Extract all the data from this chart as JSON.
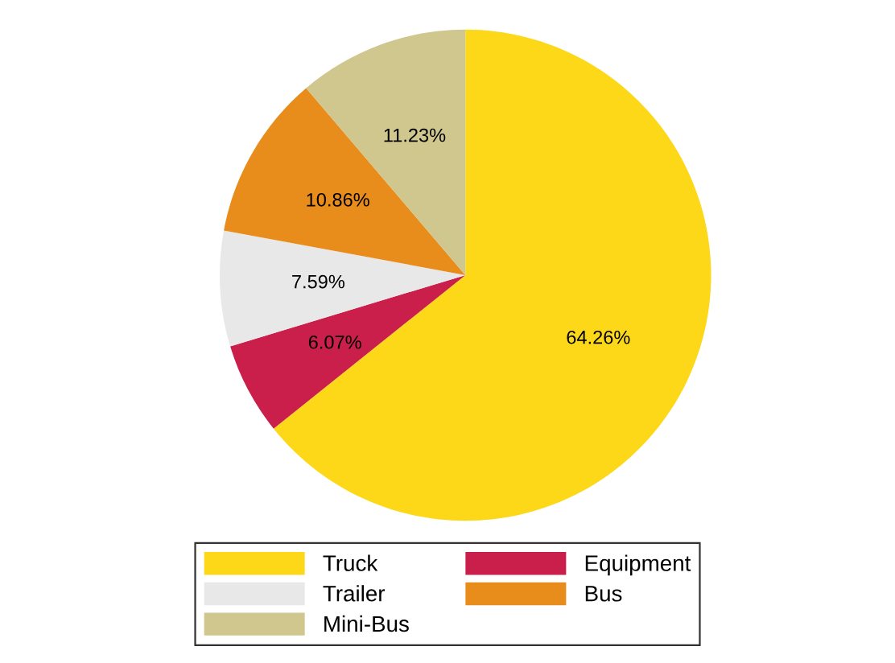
{
  "chart_data": {
    "type": "pie",
    "categories": [
      "Truck",
      "Equipment",
      "Trailer",
      "Bus",
      "Mini-Bus"
    ],
    "values": [
      64.26,
      6.07,
      7.59,
      10.86,
      11.23
    ],
    "colors": [
      "#fdd819",
      "#c91f4a",
      "#e8e8e8",
      "#e88c1c",
      "#cfc78e"
    ],
    "value_labels": [
      "64.26%",
      "6.07%",
      "7.59%",
      "10.86%",
      "11.23%"
    ],
    "legend": "bottom"
  }
}
